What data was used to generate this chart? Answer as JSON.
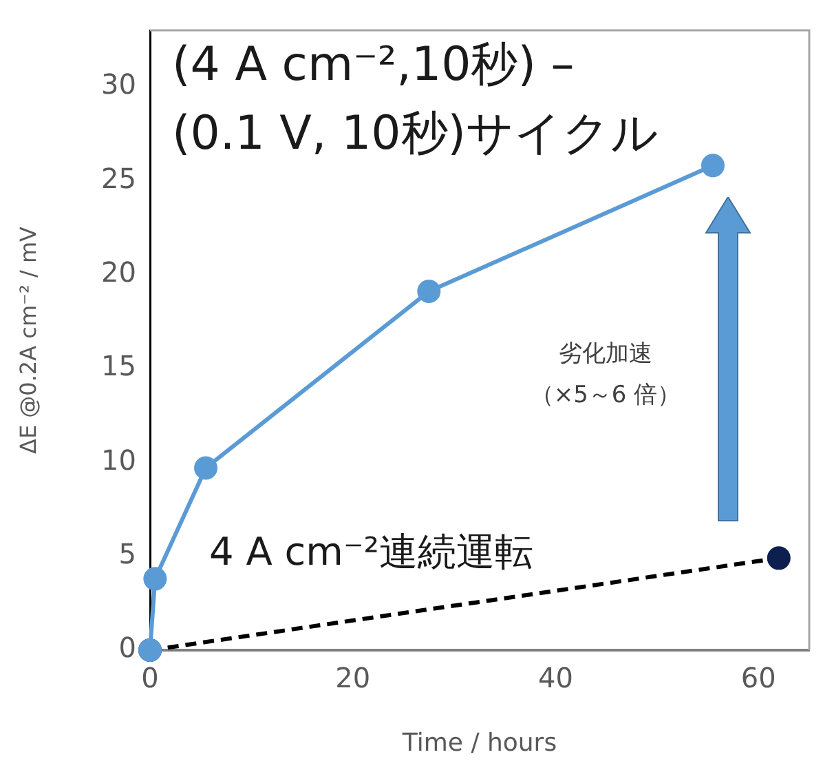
{
  "chart_data": {
    "type": "line",
    "xlabel": "Time / hours",
    "ylabel": "ΔE @0.2A cm⁻² / mV",
    "xlim": [
      0,
      65
    ],
    "xticks": [
      0,
      20,
      40,
      60
    ],
    "ylim": [
      0,
      33
    ],
    "yticks": [
      0,
      5,
      10,
      15,
      20,
      25,
      30
    ],
    "series": [
      {
        "name": "(4 A cm⁻²,10秒) –\n(0.1 V, 10秒)サイクル",
        "color": "#5b9bd5",
        "x": [
          0,
          0.5,
          5.5,
          27.5,
          55.5
        ],
        "values": [
          0,
          3.8,
          9.7,
          19.1,
          25.8
        ],
        "line_style": "solid"
      },
      {
        "name": "4 A cm⁻²連続運転",
        "color": "#0d1f4f",
        "x": [
          0,
          62
        ],
        "values": [
          0,
          4.9
        ],
        "line_style": "dashed"
      }
    ],
    "annotations": [
      "劣化加速",
      "（×5～6 倍）"
    ],
    "marker": "circle",
    "grid": false,
    "legend": false
  }
}
